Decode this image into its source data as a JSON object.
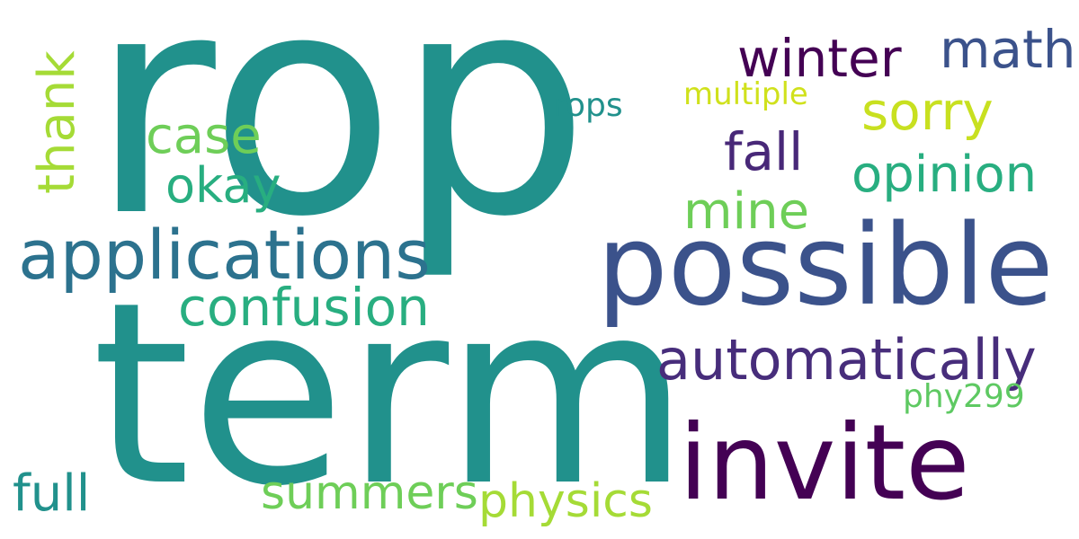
{
  "words": [
    {
      "text": "rop",
      "color": "#21918c",
      "vertical": false
    },
    {
      "text": "term",
      "color": "#21918c",
      "vertical": false
    },
    {
      "text": "possible",
      "color": "#3b528b",
      "vertical": false
    },
    {
      "text": "invite",
      "color": "#440154",
      "vertical": false
    },
    {
      "text": "applications",
      "color": "#2c728e",
      "vertical": false
    },
    {
      "text": "automatically",
      "color": "#472d7b",
      "vertical": false
    },
    {
      "text": "confusion",
      "color": "#28ae80",
      "vertical": false
    },
    {
      "text": "opinion",
      "color": "#28ae80",
      "vertical": false
    },
    {
      "text": "winter",
      "color": "#440154",
      "vertical": false
    },
    {
      "text": "math",
      "color": "#3b528b",
      "vertical": false
    },
    {
      "text": "sorry",
      "color": "#c8e020",
      "vertical": false
    },
    {
      "text": "fall",
      "color": "#482878",
      "vertical": false
    },
    {
      "text": "mine",
      "color": "#6ece58",
      "vertical": false
    },
    {
      "text": "case",
      "color": "#6ece58",
      "vertical": false
    },
    {
      "text": "okay",
      "color": "#28ae80",
      "vertical": false
    },
    {
      "text": "thank",
      "color": "#a5db36",
      "vertical": true
    },
    {
      "text": "rops",
      "color": "#21918c",
      "vertical": false
    },
    {
      "text": "multiple",
      "color": "#d0e11c",
      "vertical": false
    },
    {
      "text": "summers",
      "color": "#6ece58",
      "vertical": false
    },
    {
      "text": "physics",
      "color": "#a5db36",
      "vertical": false
    },
    {
      "text": "full",
      "color": "#21918c",
      "vertical": false
    },
    {
      "text": "phy299",
      "color": "#5ec962",
      "vertical": false
    }
  ]
}
